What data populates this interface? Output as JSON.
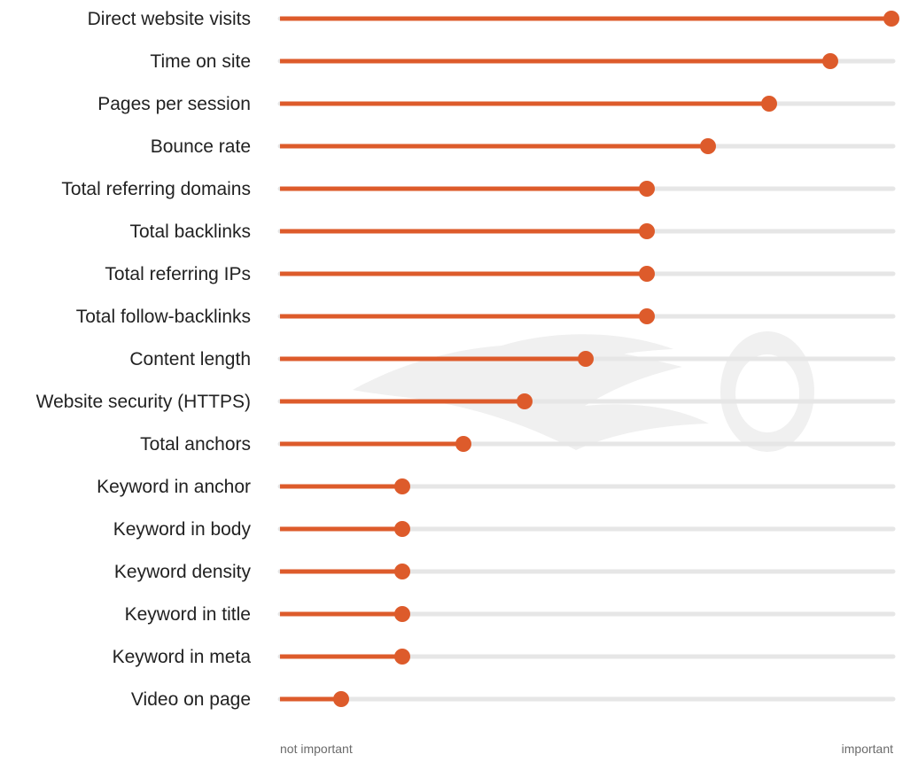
{
  "chart_data": {
    "type": "bar",
    "categories": [
      "Direct website visits",
      "Time on site",
      "Pages per session",
      "Bounce rate",
      "Total referring domains",
      "Total backlinks",
      "Total referring IPs",
      "Total follow-backlinks",
      "Content length",
      "Website security (HTTPS)",
      "Total anchors",
      "Keyword in anchor",
      "Keyword in body",
      "Keyword density",
      "Keyword in title",
      "Keyword in meta",
      "Video on page"
    ],
    "values": [
      1.0,
      0.9,
      0.8,
      0.7,
      0.6,
      0.6,
      0.6,
      0.6,
      0.5,
      0.4,
      0.3,
      0.2,
      0.2,
      0.2,
      0.2,
      0.2,
      0.1
    ],
    "xlim": [
      0,
      1
    ],
    "x_axis": {
      "min_label": "not important",
      "max_label": "important"
    },
    "orientation": "horizontal",
    "style": "lollipop",
    "colors": {
      "bar": "#dd5b2b",
      "track": "#e6e6e6",
      "watermark": "#f0f0f0"
    }
  }
}
